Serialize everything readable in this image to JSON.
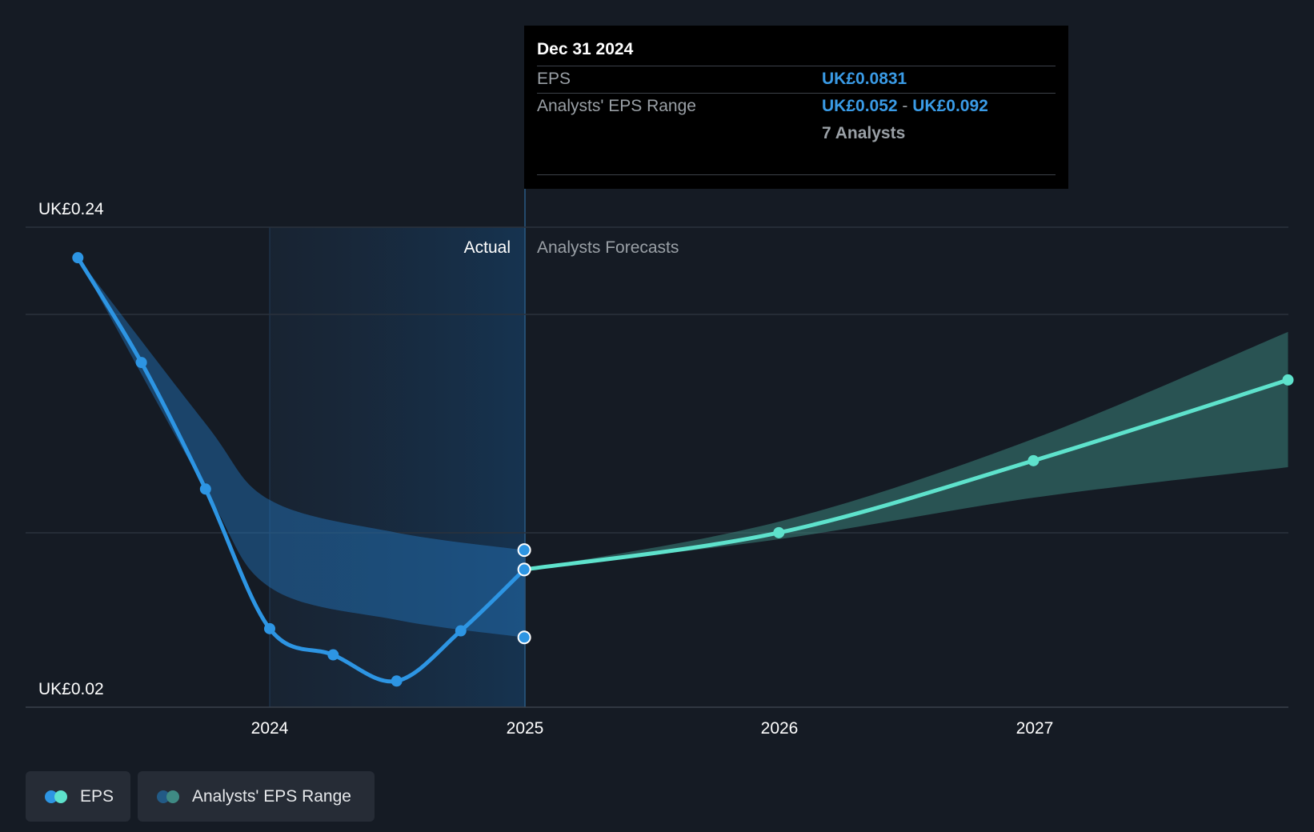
{
  "chart_data": {
    "type": "line",
    "y_top_label": "UK£0.24",
    "y_bottom_label": "UK£0.02",
    "ylim": [
      0.02,
      0.24
    ],
    "x_ticks": [
      "2024",
      "2025",
      "2026",
      "2027"
    ],
    "actual_label": "Actual",
    "forecast_label": "Analysts Forecasts",
    "series": [
      {
        "name": "EPS",
        "color": "#2d95e3",
        "x": [
          "2023-04-01",
          "2023-07-01",
          "2023-10-01",
          "2024-01-01",
          "2024-04-01",
          "2024-07-01",
          "2024-10-01",
          "2024-12-31"
        ],
        "values": [
          0.226,
          0.178,
          0.12,
          0.056,
          0.044,
          0.032,
          0.055,
          0.0831
        ]
      },
      {
        "name": "EPS Forecast",
        "color": "#5ee2cc",
        "x": [
          "2024-12-31",
          "2025-12-31",
          "2026-12-31",
          "2027-12-31"
        ],
        "values": [
          0.0831,
          0.1,
          0.133,
          0.17
        ]
      }
    ],
    "range": {
      "name": "Analysts' EPS Range",
      "actual_x": [
        "2023-04-01",
        "2023-10-01",
        "2024-01-01",
        "2024-07-01",
        "2024-12-31"
      ],
      "actual_low": [
        0.226,
        0.12,
        0.075,
        0.06,
        0.052
      ],
      "actual_high": [
        0.226,
        0.15,
        0.115,
        0.1,
        0.092
      ],
      "forecast_x": [
        "2024-12-31",
        "2025-12-31",
        "2026-12-31",
        "2027-12-31"
      ],
      "forecast_low": [
        0.0831,
        0.097,
        0.116,
        0.13
      ],
      "forecast_high": [
        0.0831,
        0.105,
        0.143,
        0.192
      ]
    }
  },
  "tooltip": {
    "date": "Dec 31 2024",
    "eps_label": "EPS",
    "eps_value": "UK£0.0831",
    "range_label": "Analysts' EPS Range",
    "range_low": "UK£0.052",
    "range_sep": "-",
    "range_high": "UK£0.092",
    "analysts": "7 Analysts"
  },
  "legend": {
    "eps": "EPS",
    "range": "Analysts' EPS Range"
  }
}
